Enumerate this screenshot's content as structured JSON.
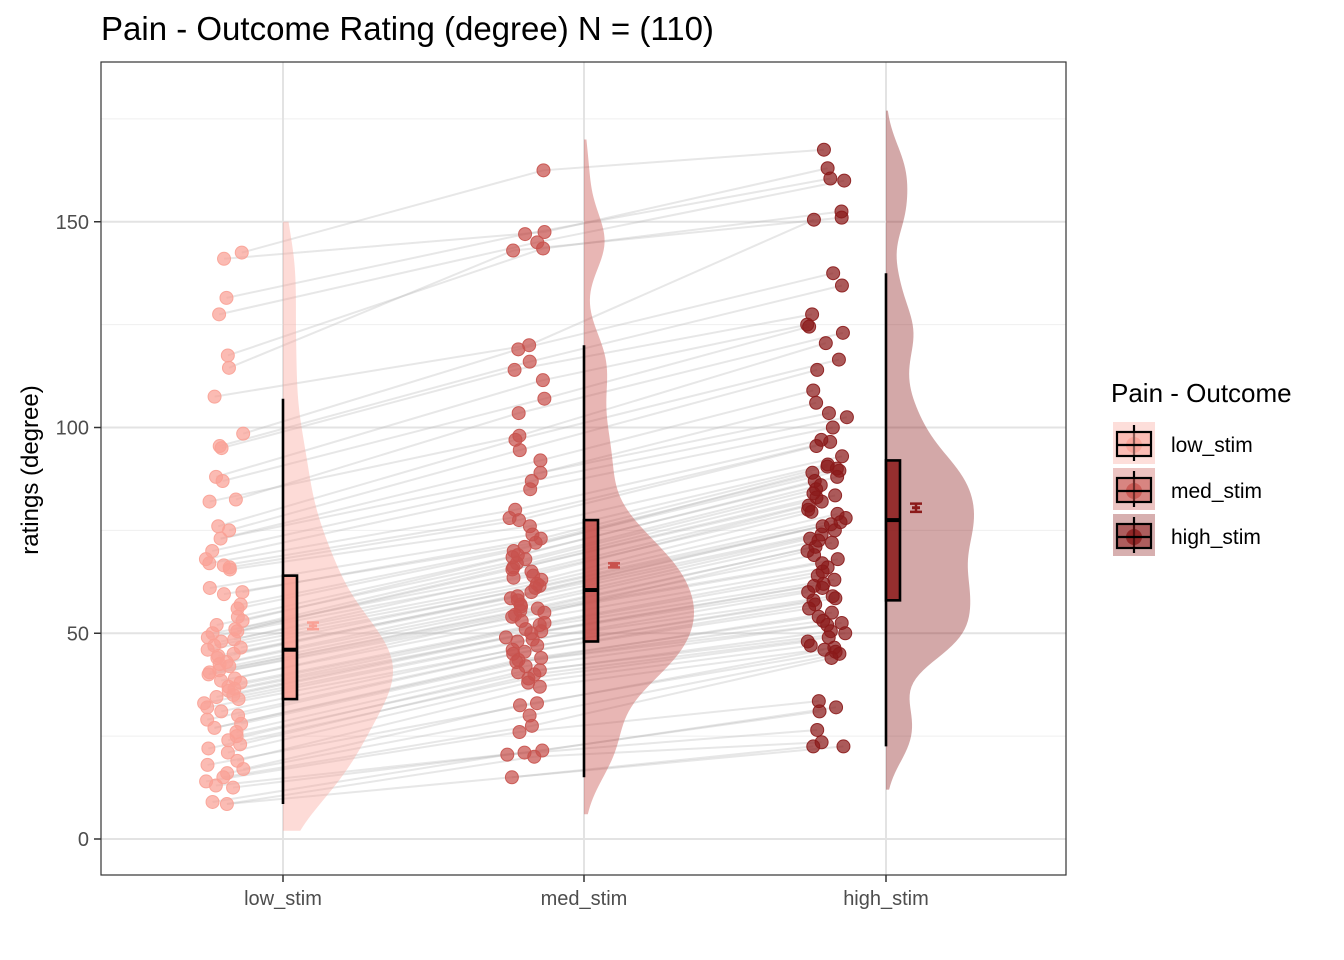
{
  "chart_data": {
    "type": "raincloud",
    "title": "Pain - Outcome Rating (degree) N = (110)",
    "xlabel": "",
    "ylabel": "ratings (degree)",
    "ylim": [
      -9,
      189
    ],
    "yticks": [
      0,
      50,
      100,
      150
    ],
    "categories": [
      "low_stim",
      "med_stim",
      "high_stim"
    ],
    "legend": {
      "title": "Pain - Outcome",
      "position": "right"
    },
    "grid": true,
    "series": [
      {
        "name": "low_stim",
        "color": "#F9A195",
        "box": {
          "min": 8.5,
          "q1": 34,
          "median": 46,
          "q3": 64,
          "max": 107
        },
        "mean": 51.8,
        "mean_ci": [
          51.0,
          52.6
        ],
        "points": [
          142.5,
          141,
          131.5,
          127.5,
          117.5,
          114.5,
          107.5,
          98.5,
          95.5,
          95,
          88,
          87,
          82.5,
          82,
          76,
          75,
          73,
          70,
          68,
          67,
          66.5,
          66,
          65.5,
          61,
          60,
          59.5,
          57,
          56,
          54,
          53,
          52,
          51,
          50.5,
          50,
          49,
          48.5,
          48,
          47,
          46.5,
          46,
          45,
          44.5,
          44,
          43,
          42.5,
          42,
          41,
          40.5,
          40,
          39,
          38.5,
          38,
          37,
          36.5,
          36,
          35,
          34.5,
          34,
          33,
          32,
          31,
          30,
          29,
          28,
          27,
          26,
          25,
          24,
          23,
          22,
          21,
          19,
          18,
          17,
          16,
          15,
          14,
          13,
          12.5,
          9,
          8.5
        ]
      },
      {
        "name": "med_stim",
        "color": "#C8524D",
        "box": {
          "min": 15,
          "q1": 48,
          "median": 60.5,
          "q3": 77.5,
          "max": 120
        },
        "mean": 66.5,
        "mean_ci": [
          66.0,
          67.0
        ],
        "points": [
          162.5,
          147.5,
          147,
          145,
          143.5,
          143,
          120,
          119,
          116,
          114,
          111.5,
          107,
          103.5,
          98,
          97,
          94.5,
          92,
          89,
          87,
          85,
          80,
          78,
          77.5,
          76,
          74,
          73,
          72,
          71,
          70,
          69,
          68.5,
          68,
          67,
          66,
          65.5,
          65,
          64,
          63.5,
          63,
          62,
          61.5,
          61,
          60,
          59,
          58.5,
          58,
          57,
          56.5,
          56,
          55.5,
          55,
          54.5,
          54,
          53,
          52.5,
          52,
          51,
          50.5,
          50,
          49,
          48.5,
          48,
          47,
          46,
          45.5,
          45,
          44,
          43.5,
          43,
          42,
          41,
          40.5,
          40,
          39,
          38,
          37,
          33,
          32.5,
          30,
          27.5,
          26,
          21.5,
          21,
          20.5,
          20,
          15
        ]
      },
      {
        "name": "high_stim",
        "color": "#8B1A1A",
        "box": {
          "min": 22.5,
          "q1": 58,
          "median": 77.5,
          "q3": 92,
          "max": 137.5
        },
        "mean": 80.5,
        "mean_ci": [
          79.5,
          81.5
        ],
        "points": [
          167.5,
          163,
          160.5,
          160,
          152.5,
          151,
          150.5,
          137.5,
          134.5,
          127.5,
          125,
          124.5,
          123,
          120.5,
          116.5,
          114,
          109,
          106,
          103.5,
          102.5,
          100,
          97,
          96.5,
          95.5,
          93,
          91,
          90.5,
          90,
          89.5,
          89,
          88,
          87,
          86,
          85,
          84,
          83.5,
          83,
          82,
          81,
          80,
          79.5,
          79,
          78,
          77,
          76.5,
          76,
          75,
          74,
          73,
          72.5,
          72,
          71,
          70,
          69,
          68,
          67,
          66,
          65,
          64,
          63,
          62,
          61.5,
          61,
          60,
          59,
          58.5,
          58,
          57,
          56,
          55,
          54,
          53,
          52.5,
          52,
          50.5,
          50,
          49,
          48,
          47,
          46.5,
          46,
          45.5,
          45,
          44,
          33.5,
          32,
          31,
          26.5,
          23.5,
          22.5,
          22.5
        ]
      }
    ]
  }
}
